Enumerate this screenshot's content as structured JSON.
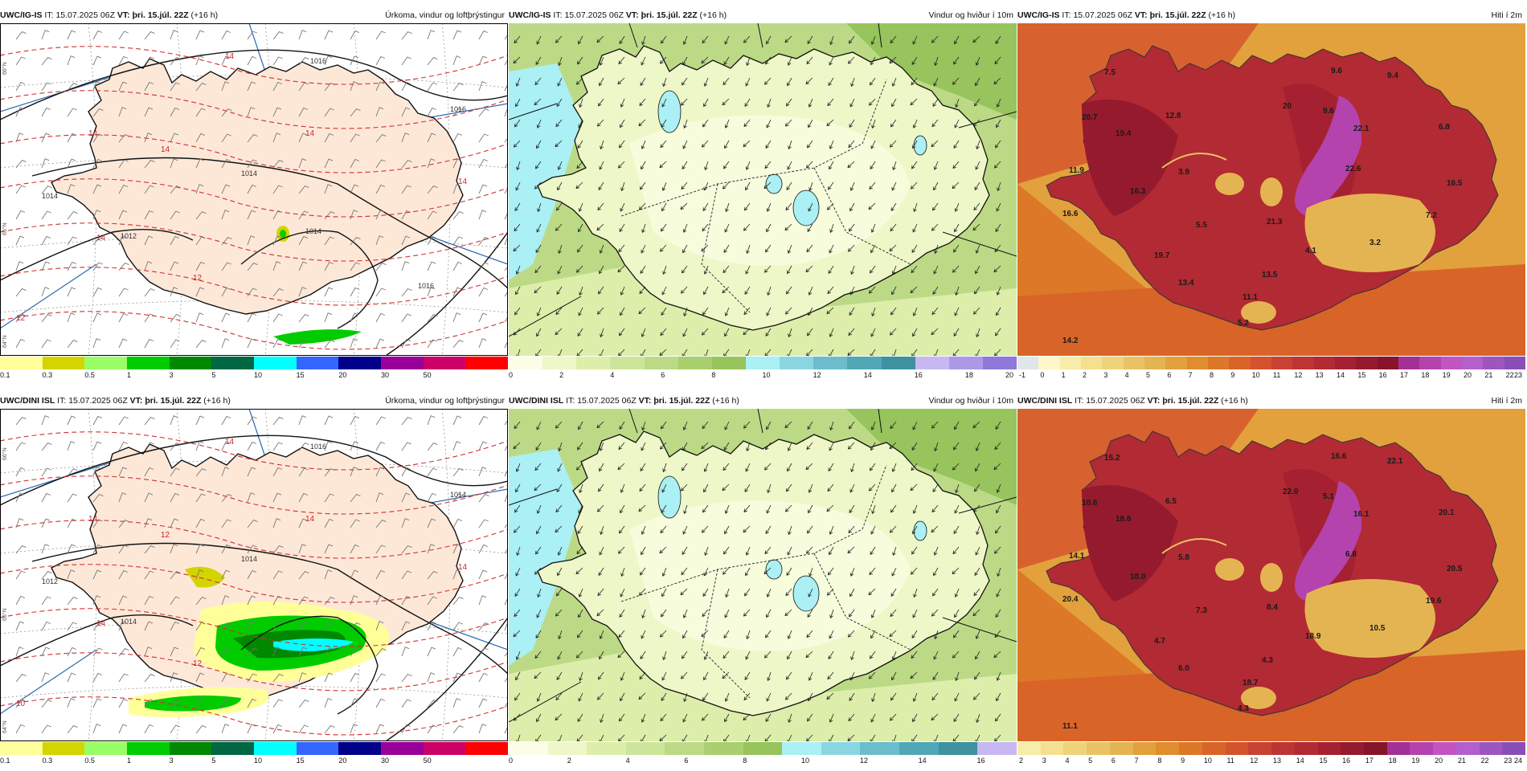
{
  "rows": [
    {
      "model": "UWC/IG-IS",
      "it_label": "IT:",
      "it_value": "15.07.2025 06Z",
      "vt_label": "VT:",
      "vt_value": "þri. 15.júl. 22Z",
      "lead": "(+16 h)",
      "panels": {
        "precip": {
          "title": "Úrkoma, vindur og loftþrýstingur"
        },
        "wind": {
          "title": "Vindur og hviður í 10m"
        },
        "temp": {
          "title": "Hiti í 2m"
        }
      },
      "precip_contours": [
        "1016",
        "1016",
        "1014",
        "1014",
        "1012",
        "1014",
        "1016"
      ],
      "precip_red_labels": [
        "14",
        "14",
        "14",
        "14",
        "14",
        "14",
        "12",
        "12"
      ],
      "edge_labels": [
        "66°N",
        "65°N",
        "64°N"
      ],
      "temp_values": [
        "7.5",
        "20.7",
        "11.9",
        "16.6",
        "19.4",
        "16.3",
        "12.8",
        "3.9",
        "9.6",
        "20",
        "9.6",
        "9.4",
        "22.1",
        "6.8",
        "22.6",
        "16.5",
        "7.2",
        "5.5",
        "21.3",
        "4.1",
        "3.2",
        "19.7",
        "13.4",
        "13.5",
        "11.1",
        "5.2",
        "14.2"
      ]
    },
    {
      "model": "UWC/DINI ISL",
      "it_label": "IT:",
      "it_value": "15.07.2025 06Z",
      "vt_label": "VT:",
      "vt_value": "þri. 15.júl. 22Z",
      "lead": "(+16 h)",
      "panels": {
        "precip": {
          "title": "Úrkoma, vindur og loftþrýstingur"
        },
        "wind": {
          "title": "Vindur og hviður í 10m"
        },
        "temp": {
          "title": "Hiti í 2m"
        }
      },
      "precip_contours": [
        "1016",
        "1014",
        "1014",
        "1012",
        "1014"
      ],
      "precip_red_labels": [
        "14",
        "14",
        "14",
        "14",
        "14",
        "12",
        "12",
        "10"
      ],
      "edge_labels": [
        "66°N",
        "65°N",
        "64°N"
      ],
      "temp_values": [
        "15.2",
        "10.6",
        "14.1",
        "20.4",
        "18.6",
        "18.0",
        "6.5",
        "5.8",
        "16.6",
        "22.0",
        "5.1",
        "22.1",
        "16.1",
        "20.1",
        "6.8",
        "20.5",
        "19.6",
        "7.3",
        "8.4",
        "18.9",
        "10.5",
        "4.7",
        "6.0",
        "4.3",
        "18.7",
        "4.3",
        "11.1"
      ]
    }
  ],
  "colorbars": {
    "precip": {
      "colors": [
        "#ffff99",
        "#d4d400",
        "#99ff66",
        "#00cc00",
        "#008800",
        "#006644",
        "#00ffff",
        "#3366ff",
        "#000088",
        "#990099",
        "#cc0066",
        "#ff0000"
      ],
      "ticks": [
        "0.1",
        "0.3",
        "0.5",
        "1",
        "3",
        "5",
        "10",
        "15",
        "20",
        "30",
        "50"
      ]
    },
    "wind_top": {
      "colors": [
        "#fbfde6",
        "#eef7c8",
        "#dceeaa",
        "#cde59a",
        "#bcda86",
        "#a9cf6e",
        "#97c45c",
        "#aaf0f4",
        "#8ad6e0",
        "#6cbdcc",
        "#52a7b6",
        "#3e929f",
        "#c7b8f2",
        "#ad98e8",
        "#8f78da"
      ],
      "ticks": [
        "0",
        "2",
        "4",
        "6",
        "8",
        "10",
        "12",
        "14",
        "16",
        "18",
        "20"
      ]
    },
    "wind_bottom": {
      "colors": [
        "#fbfde6",
        "#eef7c8",
        "#dceeaa",
        "#cde59a",
        "#bcda86",
        "#a9cf6e",
        "#97c45c",
        "#aaf0f4",
        "#8ad6e0",
        "#6cbdcc",
        "#52a7b6",
        "#3e929f",
        "#c7b8f2"
      ],
      "ticks": [
        "0",
        "2",
        "4",
        "6",
        "8",
        "10",
        "12",
        "14",
        "16"
      ]
    },
    "temp_top": {
      "colors": [
        "#dfe6ec",
        "#fdf6c8",
        "#f8ecaa",
        "#f4e08e",
        "#efd37a",
        "#e9c366",
        "#e5b452",
        "#e2a13c",
        "#df8d2e",
        "#dc7827",
        "#d96428",
        "#d4532c",
        "#c94231",
        "#be3434",
        "#b22a33",
        "#a52131",
        "#951a2e",
        "#86142a",
        "#a33096",
        "#b443ae",
        "#c255c2",
        "#b35fcd",
        "#9d56c0",
        "#8a4fb6"
      ],
      "ticks": [
        "-1",
        "0",
        "1",
        "2",
        "3",
        "4",
        "5",
        "6",
        "7",
        "8",
        "9",
        "10",
        "11",
        "12",
        "13",
        "14",
        "15",
        "16",
        "17",
        "18",
        "19",
        "20",
        "21",
        "22",
        "23"
      ]
    },
    "temp_bottom": {
      "colors": [
        "#f8ecaa",
        "#f4e08e",
        "#efd37a",
        "#e9c366",
        "#e5b452",
        "#e2a13c",
        "#df8d2e",
        "#dc7827",
        "#d96428",
        "#d4532c",
        "#c94231",
        "#be3434",
        "#b22a33",
        "#a52131",
        "#951a2e",
        "#86142a",
        "#a33096",
        "#b443ae",
        "#c255c2",
        "#b35fcd",
        "#9d56c0",
        "#8a4fb6"
      ],
      "ticks": [
        "2",
        "3",
        "4",
        "5",
        "6",
        "7",
        "8",
        "9",
        "10",
        "11",
        "12",
        "13",
        "14",
        "15",
        "16",
        "17",
        "18",
        "19",
        "20",
        "21",
        "22",
        "23",
        "24"
      ]
    }
  }
}
